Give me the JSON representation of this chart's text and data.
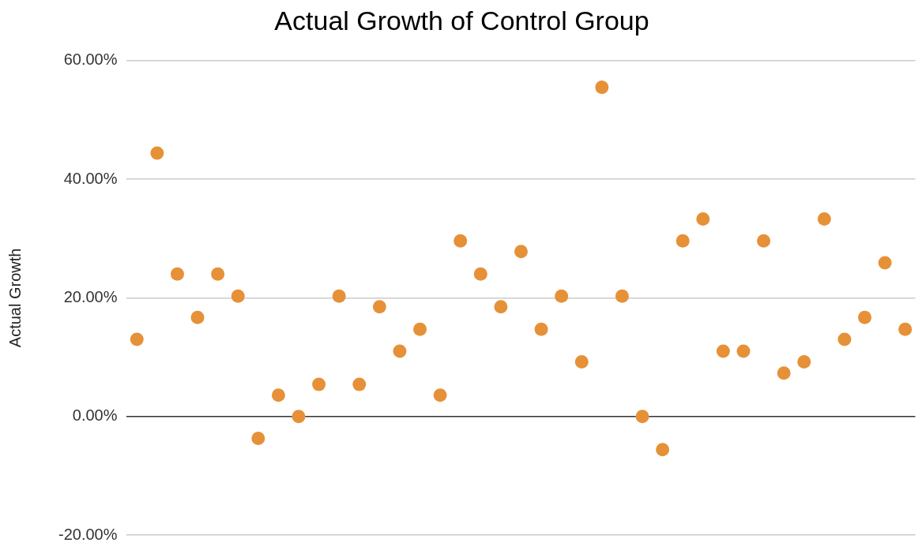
{
  "chart_data": {
    "type": "scatter",
    "title": "Actual Growth of Control Group",
    "ylabel": "Actual Growth",
    "categories": [
      null,
      null,
      null,
      null,
      null,
      null,
      null,
      null,
      null,
      null,
      null,
      null,
      null,
      null,
      null,
      null,
      null,
      null,
      null,
      null,
      null,
      null,
      null,
      null,
      null,
      null,
      null,
      null,
      null,
      null,
      null,
      null,
      null,
      null,
      null,
      null,
      null,
      null,
      null
    ],
    "series": [
      {
        "color": "#e69138",
        "values": [
          13.0,
          44.4,
          24.0,
          16.7,
          24.0,
          20.3,
          -3.7,
          3.6,
          0,
          5.4,
          20.3,
          5.4,
          18.5,
          11.0,
          14.7,
          3.6,
          29.6,
          24.0,
          18.5,
          27.8,
          14.7,
          20.3,
          9.2,
          55.5,
          20.3,
          0,
          -5.6,
          29.6,
          33.3,
          11.0,
          11.0,
          29.6,
          7.3,
          9.2,
          33.3,
          13.0,
          16.7,
          25.9,
          14.7
        ]
      }
    ],
    "ylim": [
      -20,
      60
    ],
    "yticks": [
      {
        "value": -20,
        "label": "-20.00%"
      },
      {
        "value": 0,
        "label": "0.00%"
      },
      {
        "value": 20,
        "label": "20.00%"
      },
      {
        "value": 40,
        "label": "40.00%"
      },
      {
        "value": 60,
        "label": "60.00%"
      }
    ],
    "grid": "y",
    "legend": false,
    "marker": "circle",
    "tick_labels": "y"
  }
}
